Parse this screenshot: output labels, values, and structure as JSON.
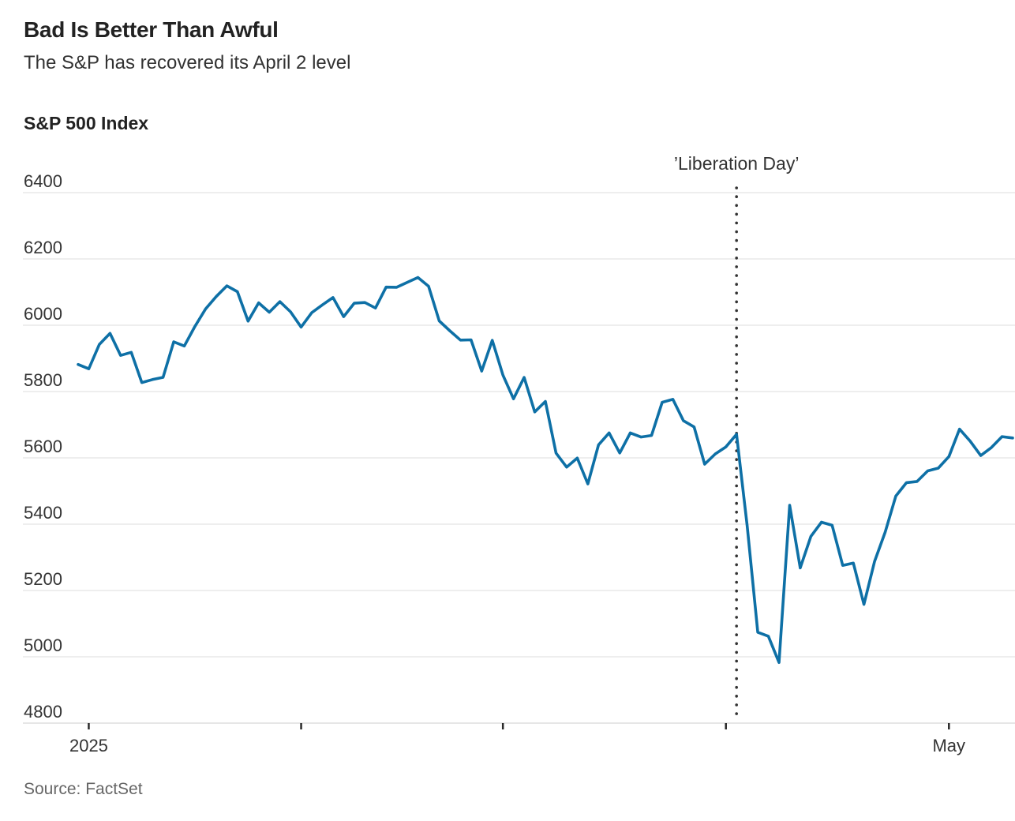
{
  "header": {
    "title": "Bad Is Better Than Awful",
    "subtitle": "The S&P has recovered its April 2 level"
  },
  "chart": {
    "axis_title": "S&P 500 Index"
  },
  "footer": {
    "source": "Source: FactSet"
  },
  "colors": {
    "line": "#0E70A6",
    "grid": "#E4E4E4",
    "axis_line": "#D8D8D8",
    "tick": "#2A2A2A",
    "annotation_dots": "#333333",
    "axis_text": "#333333",
    "title_text": "#222222",
    "subtitle_text": "#333333",
    "source_text": "#666666"
  },
  "chart_data": {
    "type": "line",
    "title": "S&P 500 Index",
    "xlabel": "",
    "ylabel": "",
    "ylim": [
      4800,
      6400
    ],
    "yticks": [
      4800,
      5000,
      5200,
      5400,
      5600,
      5800,
      6000,
      6200,
      6400
    ],
    "grid": "horizontal",
    "legend": "none",
    "xticks": [
      {
        "date": "2025-01-02",
        "label": "2025"
      },
      {
        "date": "2025-02-03",
        "label": ""
      },
      {
        "date": "2025-03-03",
        "label": ""
      },
      {
        "date": "2025-04-01",
        "label": ""
      },
      {
        "date": "2025-05-01",
        "label": "May"
      }
    ],
    "annotation": {
      "date": "2025-04-02",
      "label": "’Liberation Day’"
    },
    "series": [
      {
        "name": "S&P 500 Index",
        "points": [
          [
            "2024-12-31",
            5881.63
          ],
          [
            "2025-01-02",
            5868.55
          ],
          [
            "2025-01-03",
            5942.47
          ],
          [
            "2025-01-06",
            5975.38
          ],
          [
            "2025-01-07",
            5909.03
          ],
          [
            "2025-01-08",
            5918.25
          ],
          [
            "2025-01-10",
            5827.04
          ],
          [
            "2025-01-13",
            5836.22
          ],
          [
            "2025-01-14",
            5842.91
          ],
          [
            "2025-01-15",
            5949.91
          ],
          [
            "2025-01-16",
            5937.34
          ],
          [
            "2025-01-17",
            5996.66
          ],
          [
            "2025-01-21",
            6049.24
          ],
          [
            "2025-01-22",
            6086.37
          ],
          [
            "2025-01-23",
            6118.71
          ],
          [
            "2025-01-24",
            6101.24
          ],
          [
            "2025-01-27",
            6012.28
          ],
          [
            "2025-01-28",
            6067.7
          ],
          [
            "2025-01-29",
            6039.31
          ],
          [
            "2025-01-30",
            6071.17
          ],
          [
            "2025-01-31",
            6040.53
          ],
          [
            "2025-02-03",
            5994.57
          ],
          [
            "2025-02-04",
            6037.88
          ],
          [
            "2025-02-05",
            6061.48
          ],
          [
            "2025-02-06",
            6083.57
          ],
          [
            "2025-02-07",
            6025.99
          ],
          [
            "2025-02-10",
            6066.44
          ],
          [
            "2025-02-11",
            6068.5
          ],
          [
            "2025-02-12",
            6051.97
          ],
          [
            "2025-02-13",
            6115.07
          ],
          [
            "2025-02-14",
            6114.63
          ],
          [
            "2025-02-18",
            6129.58
          ],
          [
            "2025-02-19",
            6144.15
          ],
          [
            "2025-02-20",
            6117.52
          ],
          [
            "2025-02-21",
            6013.13
          ],
          [
            "2025-02-24",
            5983.25
          ],
          [
            "2025-02-25",
            5955.25
          ],
          [
            "2025-02-26",
            5956.06
          ],
          [
            "2025-02-27",
            5861.57
          ],
          [
            "2025-02-28",
            5954.5
          ],
          [
            "2025-03-03",
            5849.72
          ],
          [
            "2025-03-04",
            5778.15
          ],
          [
            "2025-03-05",
            5842.63
          ],
          [
            "2025-03-06",
            5738.52
          ],
          [
            "2025-03-07",
            5770.2
          ],
          [
            "2025-03-10",
            5614.56
          ],
          [
            "2025-03-11",
            5572.07
          ],
          [
            "2025-03-12",
            5599.3
          ],
          [
            "2025-03-13",
            5521.52
          ],
          [
            "2025-03-14",
            5638.94
          ],
          [
            "2025-03-17",
            5675.12
          ],
          [
            "2025-03-18",
            5614.66
          ],
          [
            "2025-03-19",
            5675.29
          ],
          [
            "2025-03-20",
            5662.89
          ],
          [
            "2025-03-21",
            5667.56
          ],
          [
            "2025-03-24",
            5767.57
          ],
          [
            "2025-03-25",
            5776.65
          ],
          [
            "2025-03-26",
            5712.2
          ],
          [
            "2025-03-27",
            5693.31
          ],
          [
            "2025-03-28",
            5580.94
          ],
          [
            "2025-03-31",
            5611.85
          ],
          [
            "2025-04-01",
            5633.07
          ],
          [
            "2025-04-02",
            5670.97
          ],
          [
            "2025-04-03",
            5396.52
          ],
          [
            "2025-04-04",
            5074.08
          ],
          [
            "2025-04-07",
            5062.25
          ],
          [
            "2025-04-08",
            4982.77
          ],
          [
            "2025-04-09",
            5456.9
          ],
          [
            "2025-04-10",
            5268.05
          ],
          [
            "2025-04-11",
            5363.36
          ],
          [
            "2025-04-14",
            5405.97
          ],
          [
            "2025-04-15",
            5396.63
          ],
          [
            "2025-04-16",
            5275.7
          ],
          [
            "2025-04-17",
            5282.7
          ],
          [
            "2025-04-21",
            5158.2
          ],
          [
            "2025-04-22",
            5287.76
          ],
          [
            "2025-04-23",
            5375.86
          ],
          [
            "2025-04-24",
            5484.77
          ],
          [
            "2025-04-25",
            5525.21
          ],
          [
            "2025-04-28",
            5528.75
          ],
          [
            "2025-04-29",
            5560.83
          ],
          [
            "2025-04-30",
            5569.06
          ],
          [
            "2025-05-01",
            5604.14
          ],
          [
            "2025-05-02",
            5686.67
          ],
          [
            "2025-05-05",
            5650.38
          ],
          [
            "2025-05-06",
            5606.91
          ],
          [
            "2025-05-07",
            5631.28
          ],
          [
            "2025-05-08",
            5663.94
          ],
          [
            "2025-05-09",
            5659.91
          ]
        ]
      }
    ]
  }
}
